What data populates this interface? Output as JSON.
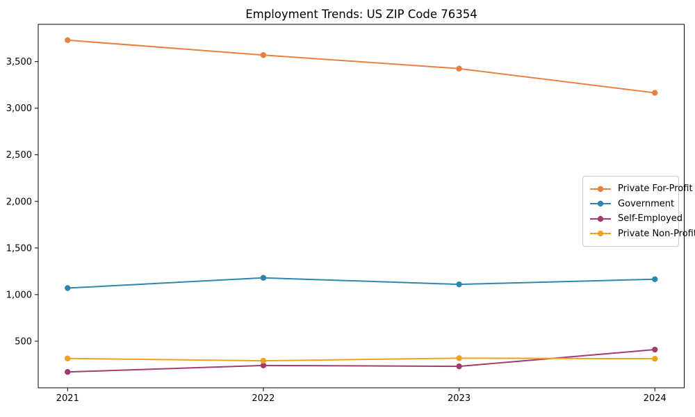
{
  "chart_data": {
    "type": "line",
    "title": "Employment Trends: US ZIP Code 76354",
    "x": [
      2021,
      2022,
      2023,
      2024
    ],
    "x_tick_labels": [
      "2021",
      "2022",
      "2023",
      "2024"
    ],
    "series": [
      {
        "name": "Private For-Profit",
        "color": "#E8813F",
        "values": [
          3730,
          3570,
          3425,
          3165
        ]
      },
      {
        "name": "Government",
        "color": "#2E86AB",
        "values": [
          1070,
          1180,
          1110,
          1165
        ]
      },
      {
        "name": "Self-Employed",
        "color": "#A23B72",
        "values": [
          170,
          240,
          230,
          410
        ]
      },
      {
        "name": "Private Non-Profit",
        "color": "#F0A21E",
        "values": [
          315,
          290,
          318,
          312
        ]
      }
    ],
    "xlabel": "",
    "ylabel": "",
    "xlim": [
      2020.85,
      2024.15
    ],
    "ylim": [
      0,
      3900
    ],
    "yticks": [
      500,
      1000,
      1500,
      2000,
      2500,
      3000,
      3500
    ],
    "ytick_labels": [
      "500",
      "1,000",
      "1,500",
      "2,000",
      "2,500",
      "3,000",
      "3,500"
    ],
    "grid": false,
    "legend_position": "center right",
    "marker": "circle",
    "background": "#ffffff",
    "axis_color": "#000000"
  }
}
